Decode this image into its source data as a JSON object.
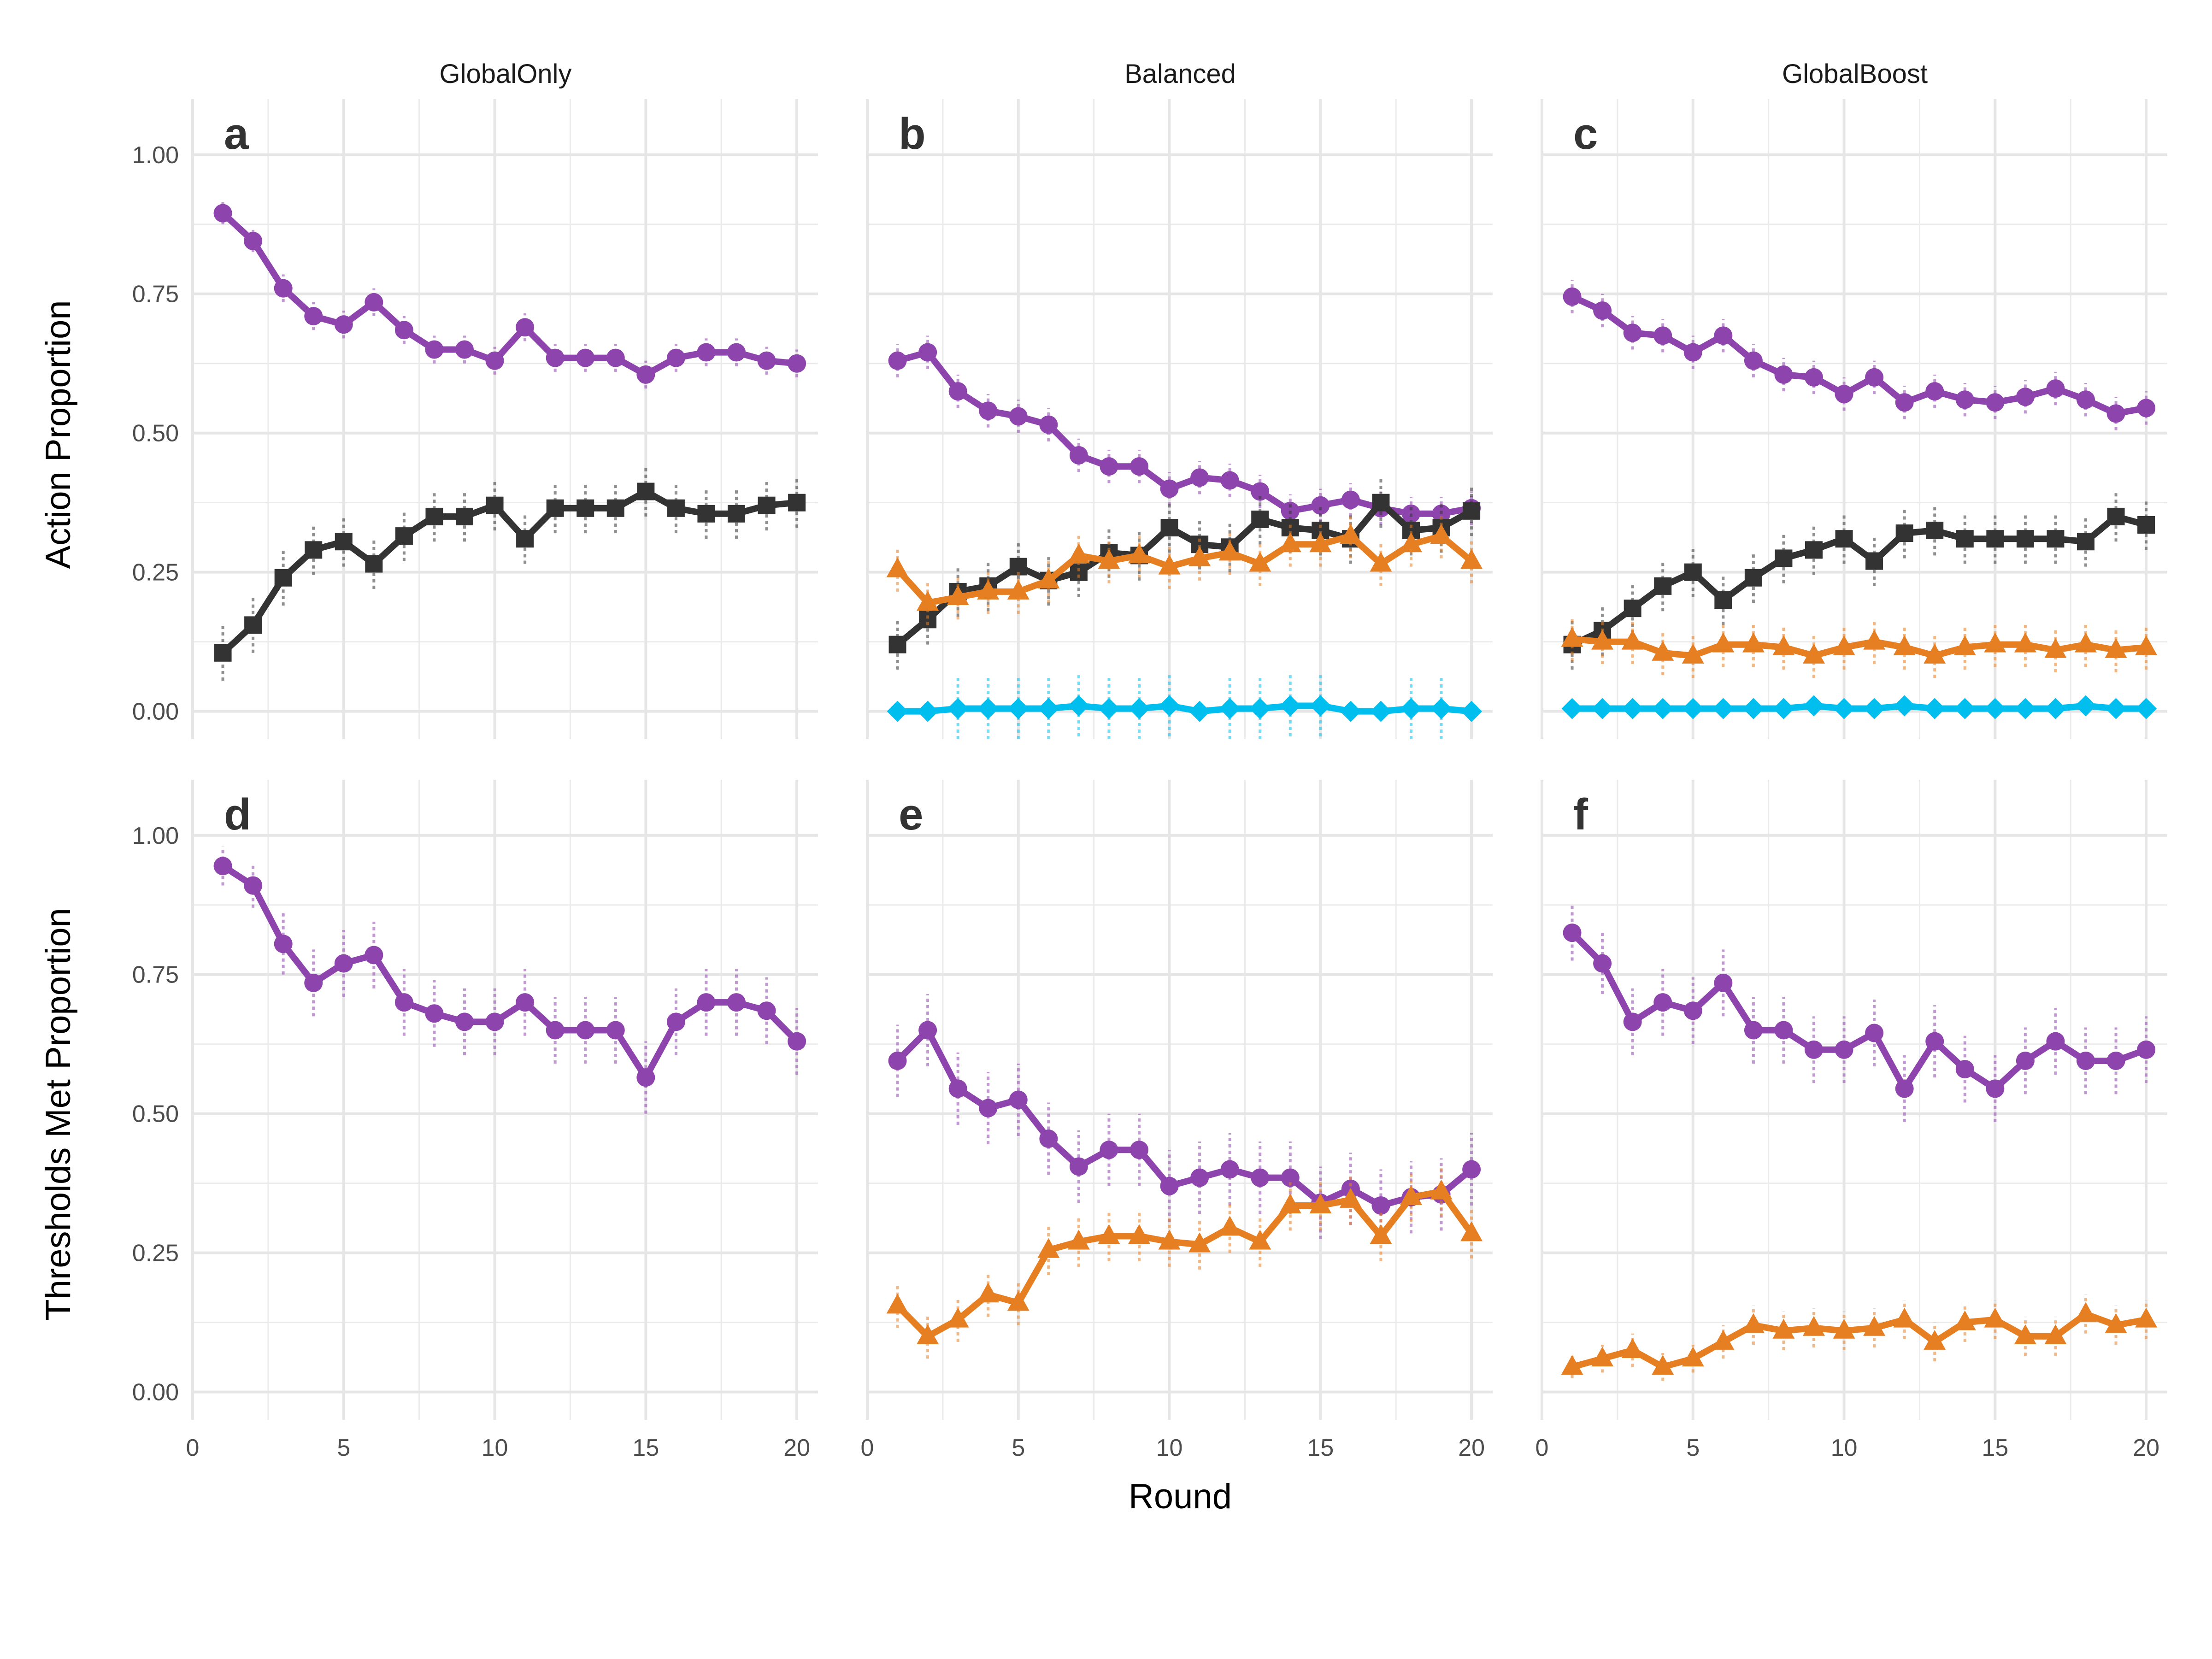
{
  "figure": {
    "column_labels": [
      "GlobalOnly",
      "Balanced",
      "GlobalBoost"
    ],
    "row_labels": [
      "Action Proportion",
      "Thresholds Met Proportion"
    ],
    "xlabel": "Round"
  },
  "styles": {
    "purple": {
      "color": "#8E44AD",
      "marker": "circle"
    },
    "dark": {
      "color": "#333333",
      "marker": "square"
    },
    "orange": {
      "color": "#E67E22",
      "marker": "triangle"
    },
    "cyan": {
      "color": "#00BFEF",
      "marker": "diamond"
    }
  },
  "chart_data": [
    {
      "type": "line",
      "panel": "a",
      "facet_column": "GlobalOnly",
      "ylabel": "Action Proportion",
      "x": [
        1,
        2,
        3,
        4,
        5,
        6,
        7,
        8,
        9,
        10,
        11,
        12,
        13,
        14,
        15,
        16,
        17,
        18,
        19,
        20
      ],
      "xlim": [
        0,
        20.7
      ],
      "ylim": [
        -0.05,
        1.1
      ],
      "xticks": [
        0,
        5,
        10,
        15,
        20
      ],
      "yticks": [
        0,
        0.25,
        0.5,
        0.75,
        1.0
      ],
      "yticklabels": [
        "0.00",
        "0.25",
        "0.50",
        "0.75",
        "1.00"
      ],
      "series": [
        {
          "style": "purple",
          "values": [
            0.895,
            0.845,
            0.76,
            0.71,
            0.695,
            0.735,
            0.685,
            0.65,
            0.65,
            0.63,
            0.69,
            0.635,
            0.635,
            0.635,
            0.605,
            0.635,
            0.645,
            0.645,
            0.63,
            0.625
          ],
          "err": [
            0.02,
            0.02,
            0.025,
            0.025,
            0.025,
            0.025,
            0.025,
            0.025,
            0.025,
            0.025,
            0.025,
            0.025,
            0.025,
            0.025,
            0.025,
            0.025,
            0.025,
            0.025,
            0.025,
            0.025
          ]
        },
        {
          "style": "dark",
          "values": [
            0.105,
            0.155,
            0.24,
            0.29,
            0.305,
            0.265,
            0.315,
            0.35,
            0.35,
            0.37,
            0.31,
            0.365,
            0.365,
            0.365,
            0.395,
            0.365,
            0.355,
            0.355,
            0.37,
            0.375
          ],
          "err": [
            0.05,
            0.05,
            0.05,
            0.045,
            0.045,
            0.045,
            0.045,
            0.045,
            0.045,
            0.045,
            0.045,
            0.045,
            0.045,
            0.045,
            0.045,
            0.045,
            0.045,
            0.045,
            0.045,
            0.045
          ]
        }
      ]
    },
    {
      "type": "line",
      "panel": "b",
      "facet_column": "Balanced",
      "ylabel": "Action Proportion",
      "x": [
        1,
        2,
        3,
        4,
        5,
        6,
        7,
        8,
        9,
        10,
        11,
        12,
        13,
        14,
        15,
        16,
        17,
        18,
        19,
        20
      ],
      "xlim": [
        0,
        20.7
      ],
      "ylim": [
        -0.05,
        1.1
      ],
      "xticks": [
        0,
        5,
        10,
        15,
        20
      ],
      "yticks": [
        0,
        0.25,
        0.5,
        0.75,
        1.0
      ],
      "yticklabels": [
        "0.00",
        "0.25",
        "0.50",
        "0.75",
        "1.00"
      ],
      "series": [
        {
          "style": "purple",
          "values": [
            0.63,
            0.645,
            0.575,
            0.54,
            0.53,
            0.515,
            0.46,
            0.44,
            0.44,
            0.4,
            0.42,
            0.415,
            0.395,
            0.36,
            0.37,
            0.38,
            0.365,
            0.355,
            0.355,
            0.365
          ],
          "err": [
            0.03,
            0.03,
            0.03,
            0.03,
            0.03,
            0.03,
            0.03,
            0.03,
            0.03,
            0.03,
            0.03,
            0.03,
            0.03,
            0.03,
            0.03,
            0.03,
            0.03,
            0.03,
            0.03,
            0.03
          ]
        },
        {
          "style": "dark",
          "values": [
            0.12,
            0.165,
            0.215,
            0.225,
            0.26,
            0.235,
            0.25,
            0.285,
            0.28,
            0.33,
            0.3,
            0.295,
            0.345,
            0.33,
            0.325,
            0.31,
            0.375,
            0.325,
            0.33,
            0.36
          ],
          "err": [
            0.045,
            0.045,
            0.045,
            0.045,
            0.045,
            0.045,
            0.045,
            0.045,
            0.045,
            0.045,
            0.045,
            0.045,
            0.045,
            0.045,
            0.045,
            0.045,
            0.045,
            0.045,
            0.045,
            0.045
          ]
        },
        {
          "style": "orange",
          "values": [
            0.255,
            0.195,
            0.205,
            0.215,
            0.215,
            0.235,
            0.28,
            0.27,
            0.28,
            0.26,
            0.275,
            0.285,
            0.265,
            0.3,
            0.3,
            0.315,
            0.265,
            0.3,
            0.315,
            0.27
          ],
          "err": [
            0.04,
            0.04,
            0.04,
            0.04,
            0.04,
            0.04,
            0.04,
            0.04,
            0.04,
            0.04,
            0.04,
            0.04,
            0.04,
            0.04,
            0.04,
            0.04,
            0.04,
            0.04,
            0.04,
            0.04
          ]
        },
        {
          "style": "cyan",
          "values": [
            0.0,
            0.0,
            0.005,
            0.005,
            0.005,
            0.005,
            0.01,
            0.005,
            0.005,
            0.01,
            0.0,
            0.005,
            0.005,
            0.01,
            0.01,
            0.0,
            0.0,
            0.005,
            0.005,
            0.0
          ],
          "err": [
            0.0,
            0.0,
            0.055,
            0.055,
            0.055,
            0.055,
            0.055,
            0.055,
            0.055,
            0.055,
            0.0,
            0.055,
            0.055,
            0.055,
            0.055,
            0.0,
            0.0,
            0.055,
            0.055,
            0.0
          ]
        }
      ]
    },
    {
      "type": "line",
      "panel": "c",
      "facet_column": "GlobalBoost",
      "ylabel": "Action Proportion",
      "x": [
        1,
        2,
        3,
        4,
        5,
        6,
        7,
        8,
        9,
        10,
        11,
        12,
        13,
        14,
        15,
        16,
        17,
        18,
        19,
        20
      ],
      "xlim": [
        0,
        20.7
      ],
      "ylim": [
        -0.05,
        1.1
      ],
      "xticks": [
        0,
        5,
        10,
        15,
        20
      ],
      "yticks": [
        0,
        0.25,
        0.5,
        0.75,
        1.0
      ],
      "yticklabels": [
        "0.00",
        "0.25",
        "0.50",
        "0.75",
        "1.00"
      ],
      "series": [
        {
          "style": "purple",
          "values": [
            0.745,
            0.72,
            0.68,
            0.675,
            0.645,
            0.675,
            0.63,
            0.605,
            0.6,
            0.57,
            0.6,
            0.555,
            0.575,
            0.56,
            0.555,
            0.565,
            0.58,
            0.56,
            0.535,
            0.545
          ],
          "err": [
            0.03,
            0.03,
            0.03,
            0.03,
            0.03,
            0.03,
            0.03,
            0.03,
            0.03,
            0.03,
            0.03,
            0.03,
            0.03,
            0.03,
            0.03,
            0.03,
            0.03,
            0.03,
            0.03,
            0.03
          ]
        },
        {
          "style": "dark",
          "values": [
            0.12,
            0.145,
            0.185,
            0.225,
            0.25,
            0.2,
            0.24,
            0.275,
            0.29,
            0.31,
            0.27,
            0.32,
            0.325,
            0.31,
            0.31,
            0.31,
            0.31,
            0.305,
            0.35,
            0.335
          ],
          "err": [
            0.045,
            0.045,
            0.045,
            0.045,
            0.045,
            0.045,
            0.045,
            0.045,
            0.045,
            0.045,
            0.045,
            0.045,
            0.045,
            0.045,
            0.045,
            0.045,
            0.045,
            0.045,
            0.045,
            0.045
          ]
        },
        {
          "style": "orange",
          "values": [
            0.13,
            0.125,
            0.125,
            0.105,
            0.1,
            0.12,
            0.12,
            0.115,
            0.1,
            0.115,
            0.125,
            0.115,
            0.1,
            0.115,
            0.12,
            0.12,
            0.11,
            0.12,
            0.11,
            0.115
          ],
          "err": [
            0.04,
            0.04,
            0.04,
            0.04,
            0.04,
            0.04,
            0.04,
            0.04,
            0.04,
            0.04,
            0.04,
            0.04,
            0.04,
            0.04,
            0.04,
            0.04,
            0.04,
            0.04,
            0.04,
            0.04
          ]
        },
        {
          "style": "cyan",
          "values": [
            0.005,
            0.005,
            0.005,
            0.005,
            0.005,
            0.005,
            0.005,
            0.005,
            0.01,
            0.005,
            0.005,
            0.01,
            0.005,
            0.005,
            0.005,
            0.005,
            0.005,
            0.01,
            0.005,
            0.005
          ],
          "err": [
            0.01,
            0.01,
            0.01,
            0.01,
            0.01,
            0.01,
            0.01,
            0.01,
            0.01,
            0.01,
            0.01,
            0.01,
            0.01,
            0.01,
            0.01,
            0.01,
            0.01,
            0.01,
            0.01,
            0.01
          ]
        }
      ]
    },
    {
      "type": "line",
      "panel": "d",
      "facet_column": "GlobalOnly",
      "ylabel": "Thresholds Met Proportion",
      "x": [
        1,
        2,
        3,
        4,
        5,
        6,
        7,
        8,
        9,
        10,
        11,
        12,
        13,
        14,
        15,
        16,
        17,
        18,
        19,
        20
      ],
      "xlim": [
        0,
        20.7
      ],
      "ylim": [
        -0.05,
        1.1
      ],
      "xticks": [
        0,
        5,
        10,
        15,
        20
      ],
      "yticks": [
        0,
        0.25,
        0.5,
        0.75,
        1.0
      ],
      "yticklabels": [
        "0.00",
        "0.25",
        "0.50",
        "0.75",
        "1.00"
      ],
      "series": [
        {
          "style": "purple",
          "values": [
            0.945,
            0.91,
            0.805,
            0.735,
            0.77,
            0.785,
            0.7,
            0.68,
            0.665,
            0.665,
            0.7,
            0.65,
            0.65,
            0.65,
            0.565,
            0.665,
            0.7,
            0.7,
            0.685,
            0.63
          ],
          "err": [
            0.035,
            0.04,
            0.055,
            0.06,
            0.06,
            0.06,
            0.06,
            0.06,
            0.06,
            0.06,
            0.06,
            0.06,
            0.06,
            0.06,
            0.065,
            0.06,
            0.06,
            0.06,
            0.06,
            0.06
          ]
        }
      ]
    },
    {
      "type": "line",
      "panel": "e",
      "facet_column": "Balanced",
      "ylabel": "Thresholds Met Proportion",
      "x": [
        1,
        2,
        3,
        4,
        5,
        6,
        7,
        8,
        9,
        10,
        11,
        12,
        13,
        14,
        15,
        16,
        17,
        18,
        19,
        20
      ],
      "xlim": [
        0,
        20.7
      ],
      "ylim": [
        -0.05,
        1.1
      ],
      "xticks": [
        0,
        5,
        10,
        15,
        20
      ],
      "yticks": [
        0,
        0.25,
        0.5,
        0.75,
        1.0
      ],
      "yticklabels": [
        "0.00",
        "0.25",
        "0.50",
        "0.75",
        "1.00"
      ],
      "series": [
        {
          "style": "purple",
          "values": [
            0.595,
            0.65,
            0.545,
            0.51,
            0.525,
            0.455,
            0.405,
            0.435,
            0.435,
            0.37,
            0.385,
            0.4,
            0.385,
            0.385,
            0.34,
            0.365,
            0.335,
            0.35,
            0.355,
            0.4
          ],
          "err": [
            0.065,
            0.065,
            0.065,
            0.065,
            0.065,
            0.065,
            0.065,
            0.065,
            0.065,
            0.065,
            0.065,
            0.065,
            0.065,
            0.065,
            0.065,
            0.065,
            0.065,
            0.065,
            0.065,
            0.065
          ]
        },
        {
          "style": "orange",
          "values": [
            0.155,
            0.1,
            0.13,
            0.175,
            0.16,
            0.255,
            0.27,
            0.28,
            0.28,
            0.27,
            0.265,
            0.295,
            0.27,
            0.335,
            0.335,
            0.345,
            0.28,
            0.35,
            0.36,
            0.285
          ],
          "err": [
            0.04,
            0.04,
            0.04,
            0.04,
            0.04,
            0.045,
            0.045,
            0.045,
            0.045,
            0.045,
            0.045,
            0.045,
            0.045,
            0.045,
            0.045,
            0.045,
            0.045,
            0.045,
            0.045,
            0.045
          ]
        }
      ]
    },
    {
      "type": "line",
      "panel": "f",
      "facet_column": "GlobalBoost",
      "ylabel": "Thresholds Met Proportion",
      "x": [
        1,
        2,
        3,
        4,
        5,
        6,
        7,
        8,
        9,
        10,
        11,
        12,
        13,
        14,
        15,
        16,
        17,
        18,
        19,
        20
      ],
      "xlim": [
        0,
        20.7
      ],
      "ylim": [
        -0.05,
        1.1
      ],
      "xticks": [
        0,
        5,
        10,
        15,
        20
      ],
      "yticks": [
        0,
        0.25,
        0.5,
        0.75,
        1.0
      ],
      "yticklabels": [
        "0.00",
        "0.25",
        "0.50",
        "0.75",
        "1.00"
      ],
      "series": [
        {
          "style": "purple",
          "values": [
            0.825,
            0.77,
            0.665,
            0.7,
            0.685,
            0.735,
            0.65,
            0.65,
            0.615,
            0.615,
            0.645,
            0.545,
            0.63,
            0.58,
            0.545,
            0.595,
            0.63,
            0.595,
            0.595,
            0.615
          ],
          "err": [
            0.05,
            0.055,
            0.06,
            0.06,
            0.06,
            0.06,
            0.06,
            0.06,
            0.06,
            0.06,
            0.06,
            0.06,
            0.065,
            0.06,
            0.06,
            0.06,
            0.06,
            0.06,
            0.06,
            0.06
          ]
        },
        {
          "style": "orange",
          "values": [
            0.045,
            0.06,
            0.075,
            0.045,
            0.06,
            0.09,
            0.12,
            0.11,
            0.115,
            0.11,
            0.115,
            0.13,
            0.09,
            0.125,
            0.13,
            0.1,
            0.1,
            0.14,
            0.12,
            0.13
          ],
          "err": [
            0.02,
            0.025,
            0.03,
            0.025,
            0.025,
            0.03,
            0.035,
            0.035,
            0.035,
            0.035,
            0.035,
            0.035,
            0.035,
            0.035,
            0.035,
            0.035,
            0.035,
            0.035,
            0.035,
            0.035
          ]
        }
      ]
    }
  ]
}
